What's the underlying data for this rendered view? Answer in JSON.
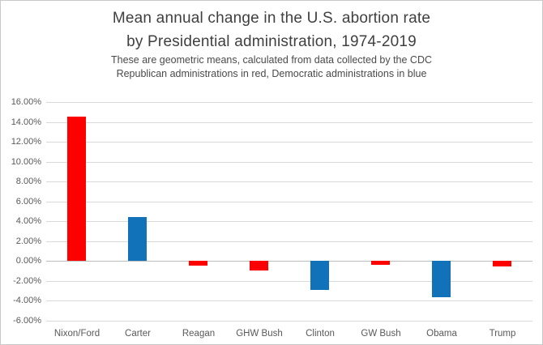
{
  "header": {
    "title_line1": "Mean annual change in the U.S. abortion rate",
    "title_line2": "by Presidential administration, 1974-2019",
    "subtitle_line1": "These are geometric means, calculated from data collected by the CDC",
    "subtitle_line2": "Republican administrations in red, Democratic administrations in blue"
  },
  "chart_data": {
    "type": "bar",
    "title": "Mean annual change in the U.S. abortion rate by Presidential administration, 1974-2019",
    "subtitle": "These are geometric means, calculated from data collected by the CDC. Republican administrations in red, Democratic administrations in blue",
    "categories": [
      "Nixon/Ford",
      "Carter",
      "Reagan",
      "GHW Bush",
      "Clinton",
      "GW Bush",
      "Obama",
      "Trump"
    ],
    "values": [
      14.5,
      4.4,
      -0.5,
      -1.0,
      -2.9,
      -0.4,
      -3.7,
      -0.6
    ],
    "unit": "percent",
    "party": [
      "R",
      "D",
      "R",
      "R",
      "D",
      "R",
      "D",
      "R"
    ],
    "colors": {
      "republican": "#ff0000",
      "democratic": "#1172ba"
    },
    "xlabel": "",
    "ylabel": "",
    "ylim": [
      -6,
      16
    ],
    "ytick_step": 2,
    "ytick_labels": [
      "16.00%",
      "14.00%",
      "12.00%",
      "10.00%",
      "8.00%",
      "6.00%",
      "4.00%",
      "2.00%",
      "0.00%",
      "-2.00%",
      "-4.00%",
      "-6.00%"
    ],
    "grid": true,
    "gridline_color": "#d9d9d9",
    "zero_line_color": "#bdbdbd",
    "legend": "none"
  }
}
